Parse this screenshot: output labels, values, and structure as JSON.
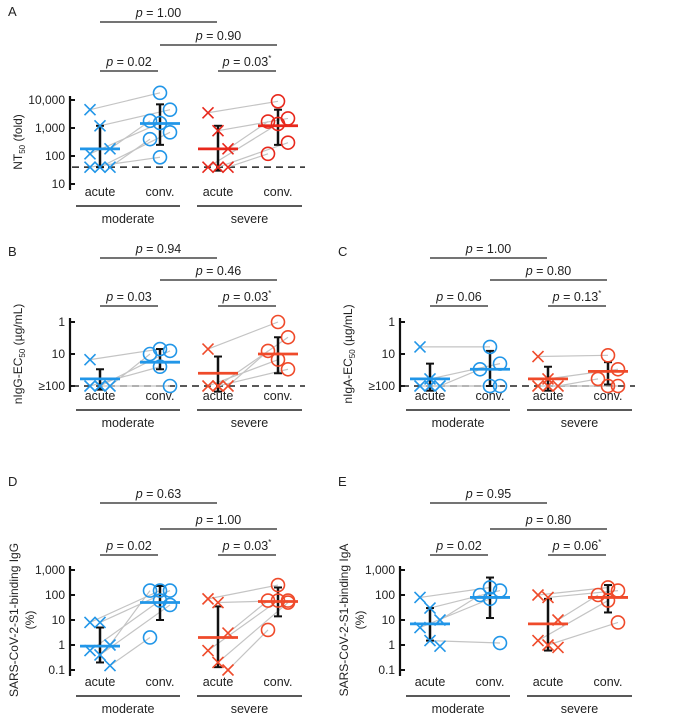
{
  "colors": {
    "moderate": "#2196e8",
    "severe_A": "#e8281c",
    "severe": "#ef4a2a",
    "pair_line": "#c4c4c4",
    "axis": "#111111"
  },
  "chart_data": [
    {
      "panel": "A",
      "type": "scatter",
      "scale": "log",
      "inverted": false,
      "ylabel": {
        "main": "NT",
        "sub": "50",
        "suffix": " (fold)",
        "line2": ""
      },
      "yticks": [
        {
          "v": 10,
          "label": "10"
        },
        {
          "v": 100,
          "label": "100"
        },
        {
          "v": 1000,
          "label": "1,000"
        },
        {
          "v": 10000,
          "label": "10,000"
        }
      ],
      "ylim": [
        10,
        20000
      ],
      "threshold": 40,
      "categories": [
        "acute",
        "conv.",
        "acute",
        "conv."
      ],
      "groups": [
        "moderate",
        "severe"
      ],
      "series": [
        {
          "group": "moderate",
          "acute": [
            4500,
            1200,
            180,
            120,
            40,
            40,
            40
          ],
          "conv": [
            18000,
            4500,
            1800,
            1500,
            700,
            400,
            90
          ],
          "median": [
            180,
            1450
          ],
          "range_acute": [
            40,
            1200
          ],
          "range_conv": [
            250,
            7000
          ]
        },
        {
          "group": "severe",
          "acute": [
            3500,
            800,
            180,
            40,
            40,
            40
          ],
          "conv": [
            9000,
            2200,
            1700,
            1400,
            300,
            120
          ],
          "median": [
            180,
            1200
          ],
          "range_acute": [
            30,
            1200
          ],
          "range_conv": [
            250,
            4500
          ]
        }
      ],
      "pvalues": [
        {
          "label": "= 1.00",
          "star": false
        },
        {
          "label": "= 0.90",
          "star": false
        },
        {
          "label": "= 0.02",
          "star": false
        },
        {
          "label": "= 0.03",
          "star": true
        }
      ]
    },
    {
      "panel": "B",
      "type": "scatter",
      "scale": "log",
      "inverted": true,
      "ylabel": {
        "main": "nIgG-EC",
        "sub": "50",
        "suffix": " (µg/mL)",
        "line2": ""
      },
      "yticks": [
        {
          "v": 1,
          "label": "1"
        },
        {
          "v": 10,
          "label": "10"
        },
        {
          "v": 100,
          "label": "≥100"
        }
      ],
      "ylim": [
        0.7,
        180
      ],
      "threshold": 100,
      "categories": [
        "acute",
        "conv.",
        "acute",
        "conv."
      ],
      "groups": [
        "moderate",
        "severe"
      ],
      "series": [
        {
          "group": "moderate",
          "acute": [
            15,
            100,
            100,
            100,
            100
          ],
          "conv": [
            7,
            8,
            10,
            25,
            100
          ],
          "median": [
            60,
            18
          ],
          "range_acute": [
            130,
            30
          ],
          "range_conv": [
            30,
            7
          ]
        },
        {
          "group": "severe",
          "acute": [
            7,
            100,
            100,
            100,
            100
          ],
          "conv": [
            1,
            3,
            8,
            15,
            30
          ],
          "median": [
            40,
            10
          ],
          "range_acute": [
            150,
            12
          ],
          "range_conv": [
            40,
            3
          ]
        }
      ],
      "pvalues": [
        {
          "label": "= 0.94",
          "star": false
        },
        {
          "label": "= 0.46",
          "star": false
        },
        {
          "label": "= 0.03",
          "star": false
        },
        {
          "label": "= 0.03",
          "star": true
        }
      ]
    },
    {
      "panel": "C",
      "type": "scatter",
      "scale": "log",
      "inverted": true,
      "ylabel": {
        "main": "nIgA-EC",
        "sub": "50",
        "suffix": " (µg/mL)",
        "line2": ""
      },
      "yticks": [
        {
          "v": 1,
          "label": "1"
        },
        {
          "v": 10,
          "label": "10"
        },
        {
          "v": 100,
          "label": "≥100"
        }
      ],
      "ylim": [
        0.7,
        180
      ],
      "threshold": 100,
      "categories": [
        "acute",
        "conv.",
        "acute",
        "conv."
      ],
      "groups": [
        "moderate",
        "severe"
      ],
      "series": [
        {
          "group": "moderate",
          "acute": [
            6,
            60,
            100,
            100,
            100
          ],
          "conv": [
            6,
            20,
            30,
            100,
            100
          ],
          "median": [
            60,
            30
          ],
          "range_acute": [
            140,
            20
          ],
          "range_conv": [
            100,
            8
          ]
        },
        {
          "group": "severe",
          "acute": [
            12,
            60,
            100,
            100,
            100
          ],
          "conv": [
            11,
            30,
            60,
            100,
            100
          ],
          "median": [
            60,
            35
          ],
          "range_acute": [
            140,
            25
          ],
          "range_conv": [
            90,
            18
          ]
        }
      ],
      "pvalues": [
        {
          "label": "= 1.00",
          "star": false
        },
        {
          "label": "= 0.80",
          "star": false
        },
        {
          "label": "= 0.06",
          "star": false
        },
        {
          "label": "= 0.13",
          "star": true
        }
      ]
    },
    {
      "panel": "D",
      "type": "scatter",
      "scale": "log",
      "inverted": false,
      "ylabel": {
        "main": "SARS-CoV-2-S1-binding IgG",
        "sub": "",
        "suffix": "",
        "line2": "(%)"
      },
      "yticks": [
        {
          "v": 0.1,
          "label": "0.1"
        },
        {
          "v": 1,
          "label": "1"
        },
        {
          "v": 10,
          "label": "10"
        },
        {
          "v": 100,
          "label": "100"
        },
        {
          "v": 1000,
          "label": "1,000"
        }
      ],
      "ylim": [
        0.1,
        1000
      ],
      "threshold": null,
      "categories": [
        "acute",
        "conv.",
        "acute",
        "conv."
      ],
      "groups": [
        "moderate",
        "severe"
      ],
      "series": [
        {
          "group": "moderate",
          "acute": [
            8,
            8,
            1,
            0.6,
            0.4,
            0.15
          ],
          "conv": [
            150,
            150,
            150,
            60,
            40,
            2
          ],
          "median": [
            0.9,
            50
          ],
          "range_acute": [
            0.2,
            5
          ],
          "range_conv": [
            10,
            230
          ]
        },
        {
          "group": "severe",
          "acute": [
            70,
            50,
            3,
            0.6,
            0.2,
            0.1
          ],
          "conv": [
            250,
            60,
            60,
            60,
            50,
            4
          ],
          "median": [
            2,
            55
          ],
          "range_acute": [
            0.13,
            35
          ],
          "range_conv": [
            14,
            200
          ]
        }
      ],
      "pvalues": [
        {
          "label": "= 0.63",
          "star": false
        },
        {
          "label": "= 1.00",
          "star": false
        },
        {
          "label": "= 0.02",
          "star": false
        },
        {
          "label": "= 0.03",
          "star": true
        }
      ]
    },
    {
      "panel": "E",
      "type": "scatter",
      "scale": "log",
      "inverted": false,
      "ylabel": {
        "main": "SARS-CoV-2-S1-binding IgA",
        "sub": "",
        "suffix": "",
        "line2": "(%)"
      },
      "yticks": [
        {
          "v": 0.1,
          "label": "0.1"
        },
        {
          "v": 1,
          "label": "1"
        },
        {
          "v": 10,
          "label": "10"
        },
        {
          "v": 100,
          "label": "100"
        },
        {
          "v": 1000,
          "label": "1,000"
        }
      ],
      "ylim": [
        0.1,
        1000
      ],
      "threshold": null,
      "categories": [
        "acute",
        "conv.",
        "acute",
        "conv."
      ],
      "groups": [
        "moderate",
        "severe"
      ],
      "series": [
        {
          "group": "moderate",
          "acute": [
            80,
            30,
            10,
            5,
            1.5,
            0.9
          ],
          "conv": [
            200,
            150,
            100,
            70,
            1.2
          ],
          "median": [
            7,
            80
          ],
          "range_acute": [
            1.5,
            30
          ],
          "range_conv": [
            12,
            500
          ]
        },
        {
          "group": "severe",
          "acute": [
            100,
            80,
            10,
            1.5,
            1,
            0.8
          ],
          "conv": [
            200,
            150,
            100,
            60,
            8
          ],
          "median": [
            7,
            80
          ],
          "range_acute": [
            0.6,
            70
          ],
          "range_conv": [
            20,
            250
          ]
        }
      ],
      "pvalues": [
        {
          "label": "= 0.95",
          "star": false
        },
        {
          "label": "= 0.80",
          "star": false
        },
        {
          "label": "= 0.02",
          "star": false
        },
        {
          "label": "= 0.06",
          "star": true
        }
      ]
    }
  ]
}
